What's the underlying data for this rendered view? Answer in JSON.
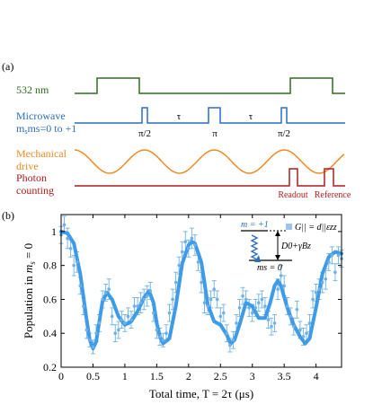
{
  "panel_a": {
    "label": "(a)",
    "channels": [
      {
        "name": "532 nm",
        "color": "#2e6b1f"
      },
      {
        "name": "Microwave",
        "sub": "ms=0 to +1",
        "color": "#2b6fc2"
      },
      {
        "name": "Mechanical",
        "sub": "drive",
        "color": "#f08a24"
      },
      {
        "name": "Photon",
        "sub": "counting",
        "color": "#b01c1c"
      }
    ],
    "pulse_labels": [
      "π/2",
      "τ",
      "π",
      "τ",
      "π/2"
    ],
    "readout_label": "Readout",
    "reference_label": "Reference"
  },
  "panel_b": {
    "label": "(b)",
    "inset": {
      "upper_state": "m = +1",
      "lower_state": "ms = 0",
      "coupling": "G|| = d||εzz",
      "splitting": "D0+γBz"
    }
  },
  "chart_data": {
    "type": "scatter",
    "xlabel": "Total time, T = 2τ (μs)",
    "ylabel": "Population in ms = 0",
    "xlim": [
      0,
      4.4
    ],
    "ylim": [
      0.2,
      1.1
    ],
    "x_ticks": [
      0,
      0.5,
      1,
      1.5,
      2,
      2.5,
      3,
      3.5,
      4
    ],
    "y_ticks": [
      0.2,
      0.4,
      0.6,
      0.8,
      1
    ],
    "colors": {
      "data": "#6fb0e6",
      "fit": "#3d9be8"
    },
    "series": [
      {
        "kind": "data",
        "x": [
          0.0,
          0.05,
          0.1,
          0.15,
          0.2,
          0.25,
          0.3,
          0.35,
          0.4,
          0.45,
          0.5,
          0.55,
          0.6,
          0.65,
          0.7,
          0.75,
          0.8,
          0.85,
          0.9,
          0.95,
          1.0,
          1.05,
          1.1,
          1.15,
          1.2,
          1.25,
          1.3,
          1.35,
          1.4,
          1.45,
          1.5,
          1.55,
          1.6,
          1.65,
          1.7,
          1.75,
          1.8,
          1.85,
          1.9,
          1.95,
          2.0,
          2.05,
          2.1,
          2.15,
          2.2,
          2.25,
          2.3,
          2.35,
          2.4,
          2.45,
          2.5,
          2.55,
          2.6,
          2.65,
          2.7,
          2.75,
          2.8,
          2.85,
          2.9,
          2.95,
          3.0,
          3.05,
          3.1,
          3.15,
          3.2,
          3.25,
          3.3,
          3.35,
          3.4,
          3.45,
          3.5,
          3.55,
          3.6,
          3.65,
          3.7,
          3.75,
          3.8,
          3.85,
          3.9,
          3.95,
          4.0,
          4.05,
          4.1,
          4.15,
          4.2,
          4.25,
          4.3,
          4.35,
          4.4
        ],
        "y": [
          0.98,
          1.04,
          0.96,
          0.9,
          0.8,
          0.82,
          0.68,
          0.56,
          0.42,
          0.36,
          0.32,
          0.4,
          0.46,
          0.6,
          0.64,
          0.66,
          0.5,
          0.4,
          0.42,
          0.48,
          0.46,
          0.5,
          0.48,
          0.56,
          0.56,
          0.58,
          0.6,
          0.62,
          0.65,
          0.52,
          0.42,
          0.38,
          0.36,
          0.4,
          0.52,
          0.6,
          0.7,
          0.8,
          0.88,
          0.94,
          0.9,
          0.96,
          0.92,
          0.82,
          0.7,
          0.58,
          0.56,
          0.6,
          0.66,
          0.6,
          0.5,
          0.52,
          0.4,
          0.33,
          0.36,
          0.46,
          0.55,
          0.62,
          0.6,
          0.55,
          0.52,
          0.55,
          0.58,
          0.6,
          0.56,
          0.48,
          0.44,
          0.46,
          0.66,
          0.74,
          0.68,
          0.56,
          0.5,
          0.44,
          0.54,
          0.42,
          0.38,
          0.4,
          0.46,
          0.6,
          0.64,
          0.66,
          0.7,
          0.72,
          0.82,
          0.86,
          0.76,
          0.86,
          0.84
        ],
        "err": [
          0.05,
          0.05,
          0.06,
          0.05,
          0.06,
          0.06,
          0.05,
          0.05,
          0.05,
          0.04,
          0.04,
          0.05,
          0.05,
          0.05,
          0.05,
          0.06,
          0.05,
          0.05,
          0.05,
          0.05,
          0.05,
          0.05,
          0.05,
          0.05,
          0.05,
          0.06,
          0.06,
          0.06,
          0.05,
          0.05,
          0.05,
          0.05,
          0.04,
          0.05,
          0.05,
          0.06,
          0.06,
          0.05,
          0.06,
          0.06,
          0.05,
          0.06,
          0.06,
          0.05,
          0.06,
          0.06,
          0.05,
          0.05,
          0.05,
          0.05,
          0.05,
          0.05,
          0.05,
          0.04,
          0.05,
          0.05,
          0.05,
          0.05,
          0.05,
          0.05,
          0.05,
          0.05,
          0.05,
          0.05,
          0.05,
          0.05,
          0.05,
          0.05,
          0.06,
          0.06,
          0.06,
          0.05,
          0.05,
          0.05,
          0.05,
          0.05,
          0.05,
          0.05,
          0.05,
          0.05,
          0.05,
          0.06,
          0.06,
          0.06,
          0.05,
          0.05,
          0.05,
          0.05,
          0.05
        ]
      },
      {
        "kind": "fit",
        "x": [
          0.0,
          0.1,
          0.2,
          0.3,
          0.4,
          0.45,
          0.5,
          0.55,
          0.6,
          0.65,
          0.72,
          0.8,
          0.9,
          1.0,
          1.1,
          1.2,
          1.3,
          1.38,
          1.45,
          1.5,
          1.55,
          1.6,
          1.7,
          1.8,
          1.9,
          2.0,
          2.05,
          2.1,
          2.2,
          2.25,
          2.3,
          2.4,
          2.5,
          2.6,
          2.66,
          2.72,
          2.8,
          2.9,
          3.0,
          3.1,
          3.2,
          3.28,
          3.35,
          3.4,
          3.45,
          3.55,
          3.65,
          3.75,
          3.83,
          3.9,
          4.0,
          4.1,
          4.2,
          4.3,
          4.4
        ],
        "y": [
          1.0,
          0.99,
          0.93,
          0.75,
          0.48,
          0.36,
          0.31,
          0.35,
          0.47,
          0.59,
          0.64,
          0.6,
          0.5,
          0.45,
          0.47,
          0.53,
          0.61,
          0.65,
          0.58,
          0.46,
          0.38,
          0.34,
          0.37,
          0.56,
          0.81,
          0.92,
          0.94,
          0.93,
          0.82,
          0.7,
          0.57,
          0.47,
          0.45,
          0.39,
          0.34,
          0.36,
          0.45,
          0.58,
          0.56,
          0.49,
          0.49,
          0.58,
          0.68,
          0.71,
          0.68,
          0.55,
          0.45,
          0.38,
          0.34,
          0.37,
          0.55,
          0.75,
          0.85,
          0.88,
          0.87
        ]
      }
    ]
  }
}
